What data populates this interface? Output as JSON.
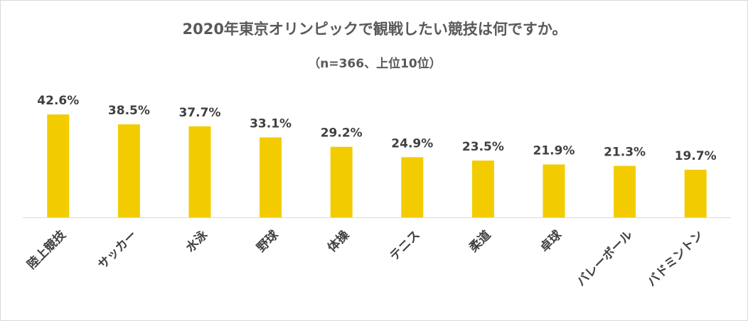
{
  "chart_data": {
    "type": "bar",
    "title": "2020年東京オリンピックで観戦したい競技は何ですか。",
    "subtitle": "（n=366、上位10位）",
    "categories": [
      "陸上競技",
      "サッカー",
      "水泳",
      "野球",
      "体操",
      "テニス",
      "柔道",
      "卓球",
      "バレーボール",
      "バドミントン"
    ],
    "values": [
      42.6,
      38.5,
      37.7,
      33.1,
      29.2,
      24.9,
      23.5,
      21.9,
      21.3,
      19.7
    ],
    "value_labels": [
      "42.6%",
      "38.5%",
      "37.7%",
      "33.1%",
      "29.2%",
      "24.9%",
      "23.5%",
      "21.9%",
      "21.3%",
      "19.7%"
    ],
    "xlabel": "",
    "ylabel": "",
    "ylim": [
      0,
      45
    ],
    "grid": false,
    "legend": "none",
    "bar_color": "#f2cc00"
  }
}
